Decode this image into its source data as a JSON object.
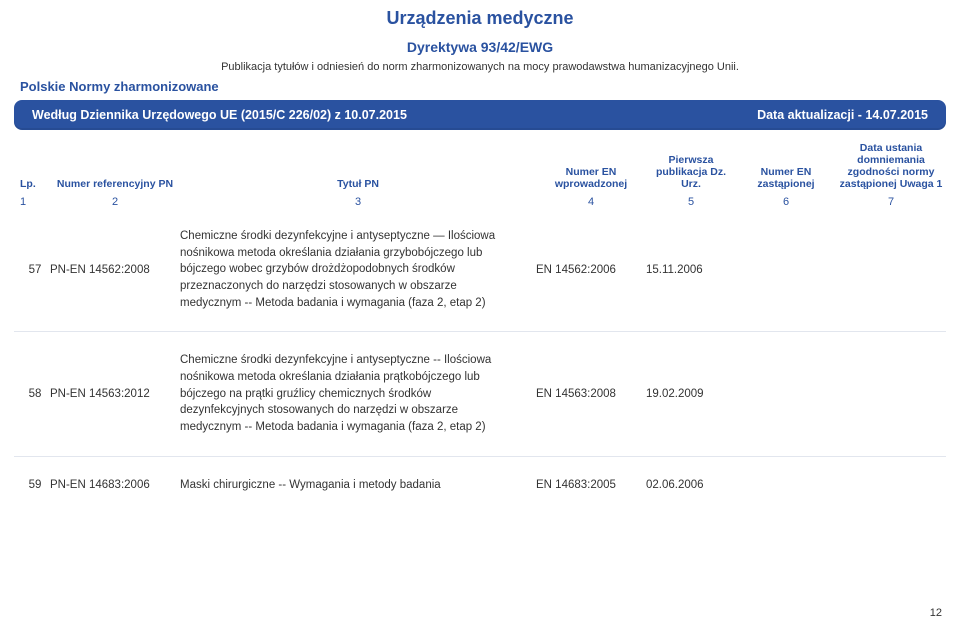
{
  "header": {
    "main_title": "Urządzenia medyczne",
    "subtitle": "Dyrektywa 93/42/EWG",
    "intro": "Publikacja tytułów i odniesień do norm zharmonizowanych na mocy prawodawstwa humanizacyjnego Unii.",
    "left_label": "Polskie Normy zharmonizowane"
  },
  "bluebar": {
    "left": "Według Dziennika Urzędowego UE (2015/C 226/02) z 10.07.2015",
    "right": "Data aktualizacji - 14.07.2015"
  },
  "columns": {
    "lp": "Lp.",
    "ref": "Numer referencyjny PN",
    "title": "Tytuł PN",
    "enin": "Numer EN wprowadzonej",
    "pub": "Pierwsza publikacja Dz. Urz.",
    "rep": "Numer EN zastąpionej",
    "note": "Data ustania domniemania zgodności normy zastąpionej Uwaga 1"
  },
  "colnums": {
    "1": "1",
    "2": "2",
    "3": "3",
    "4": "4",
    "5": "5",
    "6": "6",
    "7": "7"
  },
  "rows": [
    {
      "lp": "57",
      "ref": "PN-EN 14562:2008",
      "title": "Chemiczne środki dezynfekcyjne i antyseptyczne — Ilościowa nośnikowa metoda określania działania grzybobójczego lub bójczego wobec grzybów drożdżopodobnych środków przeznaczonych do narzędzi stosowanych w obszarze medycznym -- Metoda badania i wymagania (faza 2, etap 2)",
      "enin": "EN 14562:2006",
      "pub": "15.11.2006",
      "rep": "",
      "note": ""
    },
    {
      "lp": "58",
      "ref": "PN-EN 14563:2012",
      "title": "Chemiczne środki dezynfekcyjne i antyseptyczne -- Ilościowa nośnikowa metoda określania działania prątkobójczego lub bójczego na prątki gruźlicy chemicznych środków dezynfekcyjnych stosowanych do narzędzi w obszarze medycznym -- Metoda badania i wymagania (faza 2, etap 2)",
      "enin": "EN 14563:2008",
      "pub": "19.02.2009",
      "rep": "",
      "note": ""
    },
    {
      "lp": "59",
      "ref": "PN-EN 14683:2006",
      "title": "Maski chirurgiczne -- Wymagania i metody badania",
      "enin": "EN 14683:2005",
      "pub": "02.06.2006",
      "rep": "",
      "note": ""
    }
  ],
  "page_number": "12",
  "colors": {
    "blue": "#2a52a0",
    "white": "#ffffff",
    "text": "#333333",
    "rule": "#e2e6ee"
  }
}
